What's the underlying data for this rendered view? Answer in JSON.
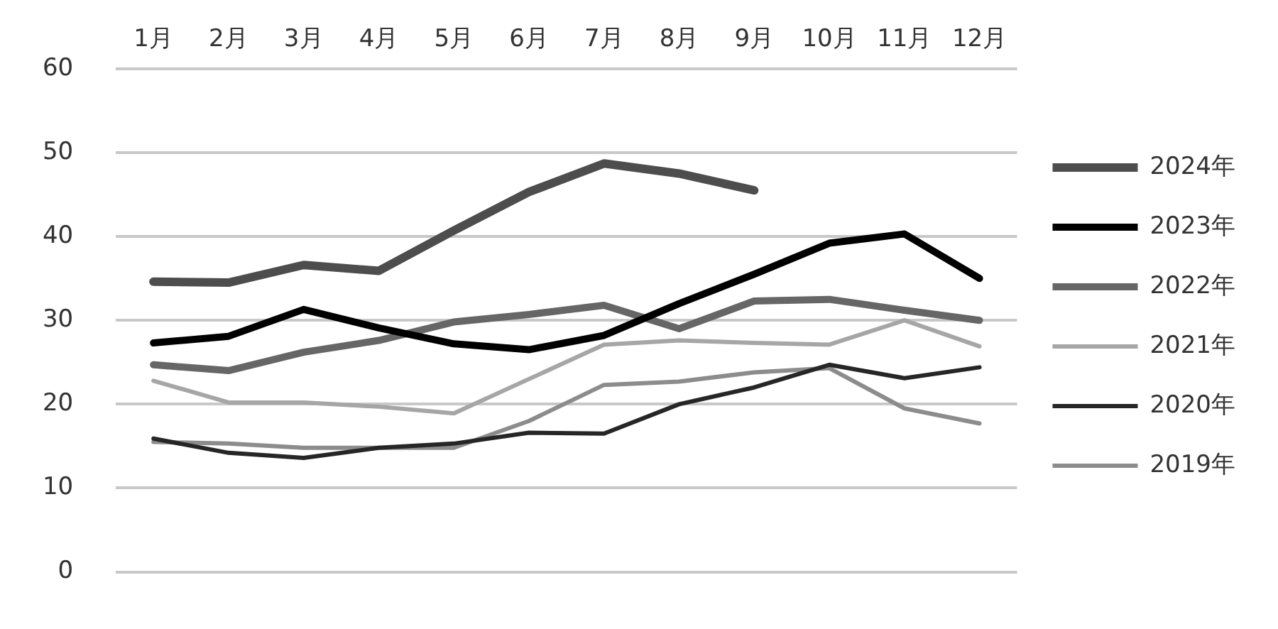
{
  "chart_data": {
    "type": "line",
    "categories": [
      "1月",
      "2月",
      "3月",
      "4月",
      "5月",
      "6月",
      "7月",
      "8月",
      "9月",
      "10月",
      "11月",
      "12月"
    ],
    "series": [
      {
        "name": "2024年",
        "color": "#4d4d4d",
        "values": [
          34.6,
          34.5,
          36.6,
          35.9,
          40.7,
          45.3,
          48.7,
          47.5,
          45.5,
          null,
          null,
          null
        ]
      },
      {
        "name": "2023年",
        "color": "#000000",
        "values": [
          27.3,
          28.1,
          31.3,
          29.1,
          27.2,
          26.5,
          28.2,
          32,
          35.5,
          39.2,
          40.3,
          35
        ]
      },
      {
        "name": "2022年",
        "color": "#666666",
        "values": [
          24.7,
          24,
          26.2,
          27.6,
          29.8,
          30.7,
          31.8,
          29,
          32.3,
          32.5,
          31.2,
          30
        ]
      },
      {
        "name": "2021年",
        "color": "#a6a6a6",
        "values": [
          22.8,
          20.2,
          20.2,
          19.7,
          18.9,
          23,
          27.1,
          27.6,
          27.3,
          27.1,
          30,
          26.9
        ]
      },
      {
        "name": "2020年",
        "color": "#262626",
        "values": [
          15.9,
          14.2,
          13.6,
          14.8,
          15.3,
          16.6,
          16.5,
          20,
          22,
          24.7,
          23.1,
          24.4
        ]
      },
      {
        "name": "2019年",
        "color": "#8c8c8c",
        "values": [
          15.5,
          15.3,
          14.8,
          14.8,
          14.8,
          18,
          22.3,
          22.7,
          23.8,
          24.3,
          19.5,
          17.7
        ]
      }
    ],
    "ylim": [
      0,
      60
    ],
    "yticks": [
      0,
      10,
      20,
      30,
      40,
      50,
      60
    ],
    "grid": "y",
    "legend": "right",
    "marker": "none",
    "line_style": "solid"
  }
}
